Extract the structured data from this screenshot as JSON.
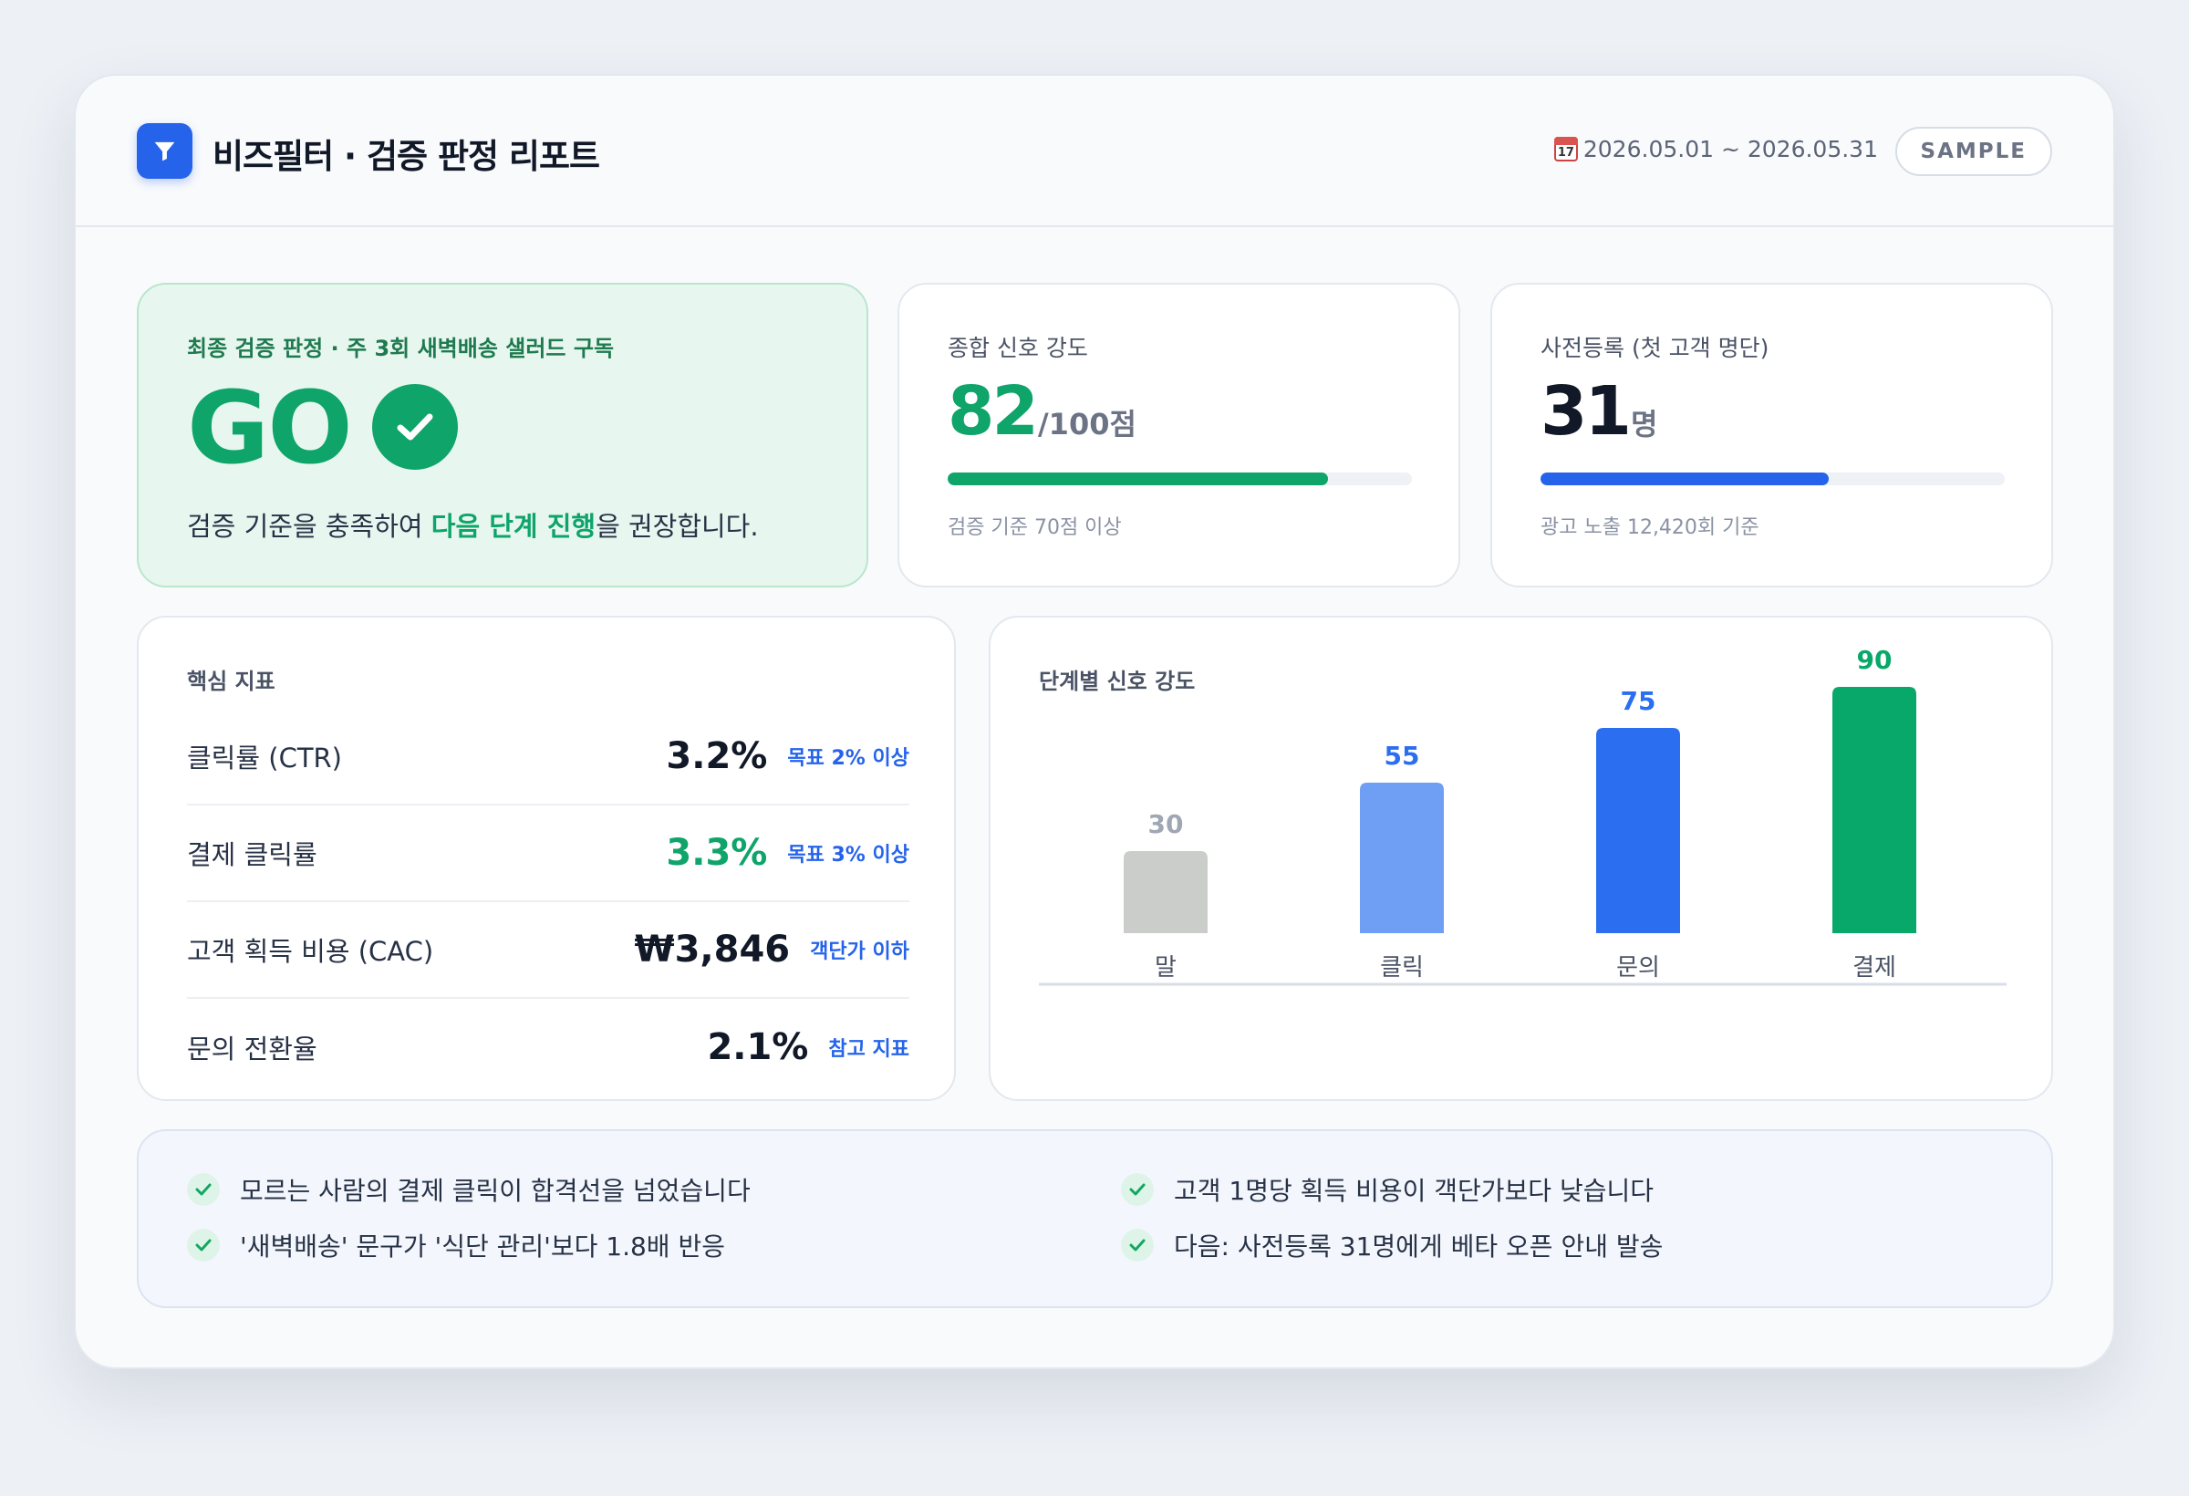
{
  "header": {
    "title": "비즈필터 · 검증 판정 리포트",
    "calendar_day": "17",
    "date_range": "2026.05.01 ~ 2026.05.31",
    "badge": "SAMPLE"
  },
  "verdict": {
    "label": "최종 검증 판정 · 주 3회 새벽배송 샐러드 구독",
    "result": "GO",
    "desc_before": "검증 기준을 충족하여 ",
    "desc_highlight": "다음 단계 진행",
    "desc_after": "을 권장합니다.",
    "color": "#0ea46a"
  },
  "signal_score": {
    "label": "종합 신호 강도",
    "value": "82",
    "unit": "/100점",
    "progress": 0.82,
    "footnote": "검증 기준 70점 이상",
    "color": "#0ea46a"
  },
  "preregistration": {
    "label": "사전등록 (첫 고객 명단)",
    "value": "31",
    "unit": "명",
    "progress": 0.62,
    "footnote": "광고 노출 12,420회 기준",
    "color": "#2563eb"
  },
  "metrics": {
    "title": "핵심 지표",
    "rows": [
      {
        "name": "클릭률 (CTR)",
        "value": "3.2%",
        "target": "목표 2% 이상",
        "highlight": false
      },
      {
        "name": "결제 클릭률",
        "value": "3.3%",
        "target": "목표 3% 이상",
        "highlight": true
      },
      {
        "name": "고객 획득 비용 (CAC)",
        "value": "₩3,846",
        "target": "객단가 이하",
        "highlight": false
      },
      {
        "name": "문의 전환율",
        "value": "2.1%",
        "target": "참고 지표",
        "highlight": false
      }
    ]
  },
  "chart": {
    "title": "단계별 신호 강도"
  },
  "chart_data": {
    "type": "bar",
    "title": "단계별 신호 강도",
    "categories": [
      "말",
      "클릭",
      "문의",
      "결제"
    ],
    "values": [
      30,
      55,
      75,
      90
    ],
    "colors": [
      "#cbcdca",
      "#6e9ff5",
      "#2b6ef0",
      "#08a86a"
    ],
    "label_colors": [
      "#a0a7b4",
      "#2b6ef0",
      "#2b6ef0",
      "#08a86a"
    ],
    "ylim": [
      0,
      100
    ],
    "grid": false
  },
  "summary": {
    "items": [
      "모르는 사람의 결제 클릭이 합격선을 넘었습니다",
      "'새벽배송' 문구가 '식단 관리'보다 1.8배 반응",
      "고객 1명당 획득 비용이 객단가보다 낮습니다",
      "다음: 사전등록 31명에게 베타 오픈 안내 발송"
    ]
  }
}
